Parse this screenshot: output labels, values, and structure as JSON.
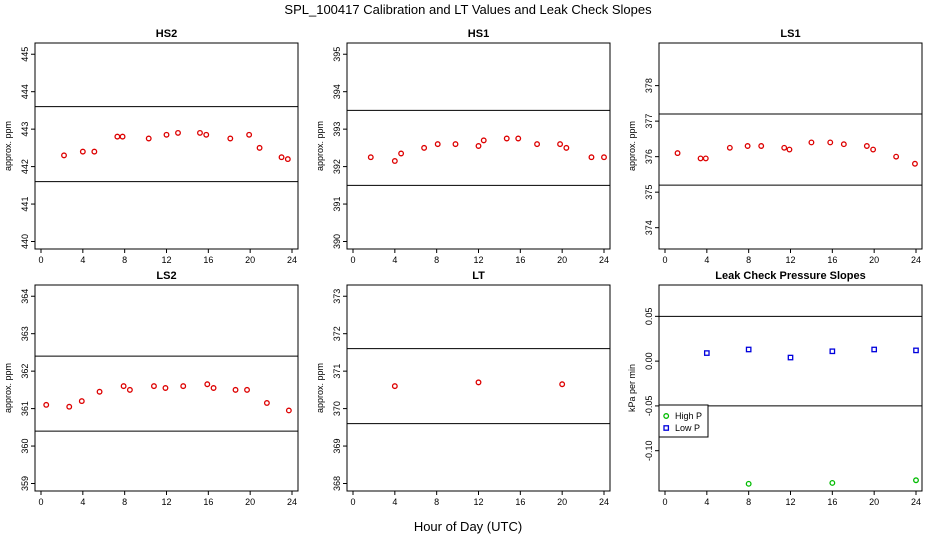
{
  "figure": {
    "title": "SPL_100417  Calibration and LT Values and Leak Check Slopes",
    "xlabel": "Hour of Day (UTC)"
  },
  "colors": {
    "calibration": "#dd0000",
    "high_p": "#00bb00",
    "low_p": "#0000dd",
    "axes": "#000000"
  },
  "chart_data": [
    {
      "type": "scatter",
      "title": "HS2",
      "ylabel": "approx. ppm",
      "xlim": [
        0,
        24
      ],
      "xticks": [
        0,
        4,
        8,
        12,
        16,
        20,
        24
      ],
      "ylim": [
        439.8,
        445.3
      ],
      "yticks": [
        440,
        441,
        442,
        443,
        444,
        445
      ],
      "hlines": [
        443.6,
        441.6
      ],
      "series": [
        {
          "marker": "circle",
          "color": "#dd0000",
          "x": [
            2.2,
            4.0,
            5.1,
            7.3,
            7.8,
            10.3,
            12.0,
            13.1,
            15.2,
            15.8,
            18.1,
            19.9,
            20.9,
            23.0,
            23.6
          ],
          "y": [
            442.3,
            442.4,
            442.4,
            442.8,
            442.8,
            442.75,
            442.85,
            442.9,
            442.9,
            442.85,
            442.75,
            442.85,
            442.5,
            442.25,
            442.2
          ]
        }
      ]
    },
    {
      "type": "scatter",
      "title": "HS1",
      "ylabel": "approx. ppm",
      "xlim": [
        0,
        24
      ],
      "xticks": [
        0,
        4,
        8,
        12,
        16,
        20,
        24
      ],
      "ylim": [
        389.8,
        395.3
      ],
      "yticks": [
        390,
        391,
        392,
        393,
        394,
        395
      ],
      "hlines": [
        393.5,
        391.5
      ],
      "series": [
        {
          "marker": "circle",
          "color": "#dd0000",
          "x": [
            1.7,
            4.0,
            4.6,
            6.8,
            8.1,
            9.8,
            12.0,
            12.5,
            14.7,
            15.8,
            17.6,
            19.8,
            20.4,
            22.8,
            24.0
          ],
          "y": [
            392.25,
            392.15,
            392.35,
            392.5,
            392.6,
            392.6,
            392.55,
            392.7,
            392.75,
            392.75,
            392.6,
            392.6,
            392.5,
            392.25,
            392.25
          ]
        }
      ]
    },
    {
      "type": "scatter",
      "title": "LS1",
      "ylabel": "approx. ppm",
      "xlim": [
        0,
        24
      ],
      "xticks": [
        0,
        4,
        8,
        12,
        16,
        20,
        24
      ],
      "ylim": [
        373.4,
        379.2
      ],
      "yticks": [
        374,
        375,
        376,
        377,
        378
      ],
      "hlines": [
        377.2,
        375.2
      ],
      "series": [
        {
          "marker": "circle",
          "color": "#dd0000",
          "x": [
            1.2,
            3.4,
            3.9,
            6.2,
            7.9,
            9.2,
            11.4,
            11.9,
            14.0,
            15.8,
            17.1,
            19.3,
            19.9,
            22.1,
            23.9
          ],
          "y": [
            376.1,
            375.95,
            375.95,
            376.25,
            376.3,
            376.3,
            376.25,
            376.2,
            376.4,
            376.4,
            376.35,
            376.3,
            376.2,
            376.0,
            375.8
          ]
        }
      ]
    },
    {
      "type": "scatter",
      "title": "LS2",
      "ylabel": "approx. ppm",
      "xlim": [
        0,
        24
      ],
      "xticks": [
        0,
        4,
        8,
        12,
        16,
        20,
        24
      ],
      "ylim": [
        358.8,
        364.3
      ],
      "yticks": [
        359,
        360,
        361,
        362,
        363,
        364
      ],
      "hlines": [
        362.4,
        360.4
      ],
      "series": [
        {
          "marker": "circle",
          "color": "#dd0000",
          "x": [
            0.5,
            2.7,
            3.9,
            5.6,
            7.9,
            8.5,
            10.8,
            11.9,
            13.6,
            15.9,
            16.5,
            18.6,
            19.7,
            21.6,
            23.7
          ],
          "y": [
            361.1,
            361.05,
            361.2,
            361.45,
            361.6,
            361.5,
            361.6,
            361.55,
            361.6,
            361.65,
            361.55,
            361.5,
            361.5,
            361.15,
            360.95
          ]
        }
      ]
    },
    {
      "type": "scatter",
      "title": "LT",
      "ylabel": "approx. ppm",
      "xlim": [
        0,
        24
      ],
      "xticks": [
        0,
        4,
        8,
        12,
        16,
        20,
        24
      ],
      "ylim": [
        367.8,
        373.3
      ],
      "yticks": [
        368,
        369,
        370,
        371,
        372,
        373
      ],
      "hlines": [
        371.6,
        369.6
      ],
      "series": [
        {
          "marker": "circle",
          "color": "#dd0000",
          "x": [
            4.0,
            12.0,
            20.0
          ],
          "y": [
            370.6,
            370.7,
            370.65
          ]
        }
      ]
    },
    {
      "type": "scatter",
      "title": "Leak Check Pressure Slopes",
      "ylabel": "kPa per min",
      "xlim": [
        0,
        24
      ],
      "xticks": [
        0,
        4,
        8,
        12,
        16,
        20,
        24
      ],
      "ylim": [
        -0.145,
        0.085
      ],
      "yticks": [
        -0.1,
        -0.05,
        0.0,
        0.05
      ],
      "ytick_labels": [
        "-0.10",
        "-0.05",
        "0.00",
        "0.05"
      ],
      "hlines": [
        0.05,
        -0.05
      ],
      "legend": {
        "position": "bottom-left"
      },
      "series": [
        {
          "name": "High P",
          "marker": "circle",
          "color": "#00bb00",
          "x": [
            8.0,
            16.0,
            24.0
          ],
          "y": [
            -0.137,
            -0.136,
            -0.133
          ]
        },
        {
          "name": "Low P",
          "marker": "square",
          "color": "#0000dd",
          "x": [
            4.0,
            8.0,
            12.0,
            16.0,
            20.0,
            24.0
          ],
          "y": [
            0.009,
            0.013,
            0.004,
            0.011,
            0.013,
            0.012
          ]
        }
      ]
    }
  ]
}
